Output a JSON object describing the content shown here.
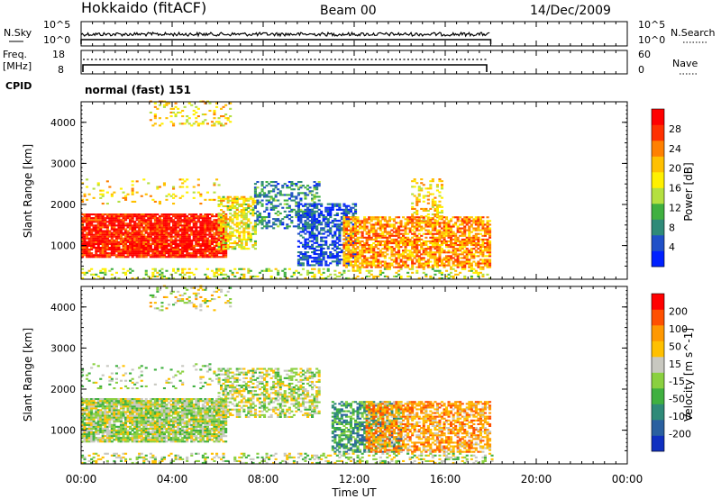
{
  "header": {
    "station": "Hokkaido (fitACF)",
    "beam": "Beam 00",
    "date": "14/Dec/2009"
  },
  "noise_panel": {
    "left_label": "N.Sky",
    "right_label": "N.Search",
    "left_ticks": [
      "10^5",
      "10^0"
    ],
    "right_ticks": [
      "10^5",
      "10^0"
    ]
  },
  "freq_panel": {
    "left_label_line1": "Freq.",
    "left_label_line2": "[MHz]",
    "right_label": "Nave",
    "left_ticks": [
      "18",
      "8"
    ],
    "right_ticks": [
      "60",
      "0"
    ]
  },
  "cpid": {
    "label": "CPID",
    "mode_text": "normal (fast) 151"
  },
  "time_axis": {
    "ticks": [
      "00:00",
      "04:00",
      "08:00",
      "12:00",
      "16:00",
      "20:00",
      "00:00"
    ],
    "label": "Time UT"
  },
  "chart_data": [
    {
      "type": "heatmap",
      "name": "power",
      "ylabel": "Slant Range [km]",
      "ytick_labels": [
        "1000",
        "2000",
        "3000",
        "4000"
      ],
      "y_ticks": [
        1000,
        2000,
        3000,
        4000
      ],
      "ylim": [
        180,
        4500
      ],
      "xlim_hours": [
        0,
        24
      ],
      "data_end_hours": 18,
      "colorbar": {
        "label": "Power [dB]",
        "tick_labels": [
          "4",
          "8",
          "12",
          "16",
          "20",
          "24",
          "28"
        ],
        "range": [
          0,
          32
        ],
        "colors": [
          "#0020ff",
          "#2050c8",
          "#2f8a78",
          "#3fb040",
          "#b4e040",
          "#fff000",
          "#ffc000",
          "#ff8000",
          "#ff3000",
          "#ff0000"
        ]
      },
      "regions": [
        {
          "t0": 0.0,
          "t1": 6.3,
          "r0": 700,
          "r1": 1750,
          "level": 0.92,
          "density": 0.9
        },
        {
          "t0": 6.0,
          "t1": 7.6,
          "r0": 900,
          "r1": 2200,
          "level": 0.55,
          "density": 0.6
        },
        {
          "t0": 7.6,
          "t1": 10.4,
          "r0": 1400,
          "r1": 2550,
          "level": 0.25,
          "density": 0.4
        },
        {
          "t0": 9.5,
          "t1": 12.0,
          "r0": 500,
          "r1": 2000,
          "level": 0.12,
          "density": 0.55
        },
        {
          "t0": 11.5,
          "t1": 18.0,
          "r0": 450,
          "r1": 1700,
          "level": 0.72,
          "density": 0.7
        },
        {
          "t0": 14.5,
          "t1": 15.8,
          "r0": 1600,
          "r1": 2600,
          "level": 0.6,
          "density": 0.35
        },
        {
          "t0": 0.0,
          "t1": 6.0,
          "r0": 2000,
          "r1": 2600,
          "level": 0.6,
          "density": 0.12
        },
        {
          "t0": 3.0,
          "t1": 6.5,
          "r0": 3900,
          "r1": 4500,
          "level": 0.6,
          "density": 0.2
        },
        {
          "t0": 0.0,
          "t1": 18.0,
          "r0": 180,
          "r1": 450,
          "level": 0.5,
          "density": 0.3
        }
      ]
    },
    {
      "type": "heatmap",
      "name": "velocity",
      "ylabel": "Slant Range [km]",
      "ytick_labels": [
        "1000",
        "2000",
        "3000",
        "4000"
      ],
      "y_ticks": [
        1000,
        2000,
        3000,
        4000
      ],
      "ylim": [
        180,
        4500
      ],
      "xlim_hours": [
        0,
        24
      ],
      "data_end_hours": 18,
      "colorbar": {
        "label": "Velocity [m s^-1]",
        "tick_labels": [
          "200",
          "100",
          "50",
          "15",
          "-15",
          "-50",
          "-100",
          "-200"
        ],
        "colors": [
          "#1030c0",
          "#2a60a0",
          "#2f8a78",
          "#3fb040",
          "#8ad040",
          "#c8c8c0",
          "#ffc000",
          "#ff9800",
          "#ff5000",
          "#ff0000"
        ]
      },
      "regions": [
        {
          "t0": 0.0,
          "t1": 6.3,
          "r0": 700,
          "r1": 1750,
          "level": 0.5,
          "density": 0.9
        },
        {
          "t0": 6.0,
          "t1": 10.4,
          "r0": 1300,
          "r1": 2500,
          "level": 0.52,
          "density": 0.5
        },
        {
          "t0": 11.0,
          "t1": 14.0,
          "r0": 450,
          "r1": 1700,
          "level": 0.3,
          "density": 0.65
        },
        {
          "t0": 12.5,
          "t1": 18.0,
          "r0": 450,
          "r1": 1700,
          "level": 0.72,
          "density": 0.65
        },
        {
          "t0": 0.0,
          "t1": 6.0,
          "r0": 2000,
          "r1": 2600,
          "level": 0.5,
          "density": 0.12
        },
        {
          "t0": 3.0,
          "t1": 6.5,
          "r0": 3900,
          "r1": 4500,
          "level": 0.55,
          "density": 0.2
        },
        {
          "t0": 0.0,
          "t1": 18.0,
          "r0": 180,
          "r1": 450,
          "level": 0.5,
          "density": 0.3
        }
      ]
    }
  ]
}
